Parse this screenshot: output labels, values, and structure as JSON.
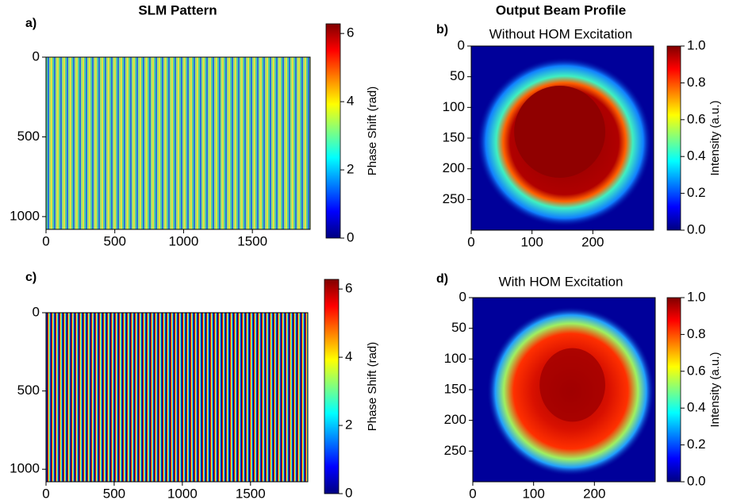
{
  "column_titles": [
    "SLM Pattern",
    "Output Beam Profile"
  ],
  "chart_data": [
    {
      "type": "heatmap",
      "panel_label": "a)",
      "colormap": "jet",
      "xlim": [
        0,
        1920
      ],
      "xticks": [
        0,
        500,
        1000,
        1500
      ],
      "ylim": [
        1080,
        0
      ],
      "yticks": [
        0,
        500,
        1000
      ],
      "colorbar": {
        "label": "Phase Shift (rad)",
        "lim": [
          0,
          6.283
        ],
        "ticks": [
          0,
          2,
          4,
          6
        ]
      }
    },
    {
      "type": "heatmap",
      "panel_label": "b)",
      "title": "Without HOM Excitation",
      "colormap": "jet",
      "xlim": [
        0,
        300
      ],
      "xticks": [
        0,
        100,
        200
      ],
      "ylim": [
        300,
        0
      ],
      "yticks": [
        0,
        50,
        100,
        150,
        200,
        250
      ],
      "colorbar": {
        "label": "Intensity (a.u.)",
        "lim": [
          0,
          1
        ],
        "ticks": [
          {
            "value": 0,
            "label": "0.0"
          },
          0.2,
          0.4,
          0.6,
          0.8,
          {
            "value": 1,
            "label": "1.0"
          }
        ]
      }
    },
    {
      "type": "heatmap",
      "panel_label": "c)",
      "colormap": "jet",
      "xlim": [
        0,
        1920
      ],
      "xticks": [
        0,
        500,
        1000,
        1500
      ],
      "ylim": [
        1080,
        0
      ],
      "yticks": [
        0,
        500,
        1000
      ],
      "colorbar": {
        "label": "Phase Shift (rad)",
        "lim": [
          0,
          6.283
        ],
        "ticks": [
          0,
          2,
          4,
          6
        ]
      }
    },
    {
      "type": "heatmap",
      "panel_label": "d)",
      "title": "With HOM Excitation",
      "colormap": "jet",
      "xlim": [
        0,
        300
      ],
      "xticks": [
        0,
        100,
        200
      ],
      "ylim": [
        300,
        0
      ],
      "yticks": [
        0,
        50,
        100,
        150,
        200,
        250
      ],
      "colorbar": {
        "label": "Intensity (a.u.)",
        "lim": [
          0,
          1
        ],
        "ticks": [
          {
            "value": 0,
            "label": "0.0"
          },
          0.2,
          0.4,
          0.6,
          0.8,
          {
            "value": 1,
            "label": "1.0"
          }
        ]
      }
    }
  ]
}
